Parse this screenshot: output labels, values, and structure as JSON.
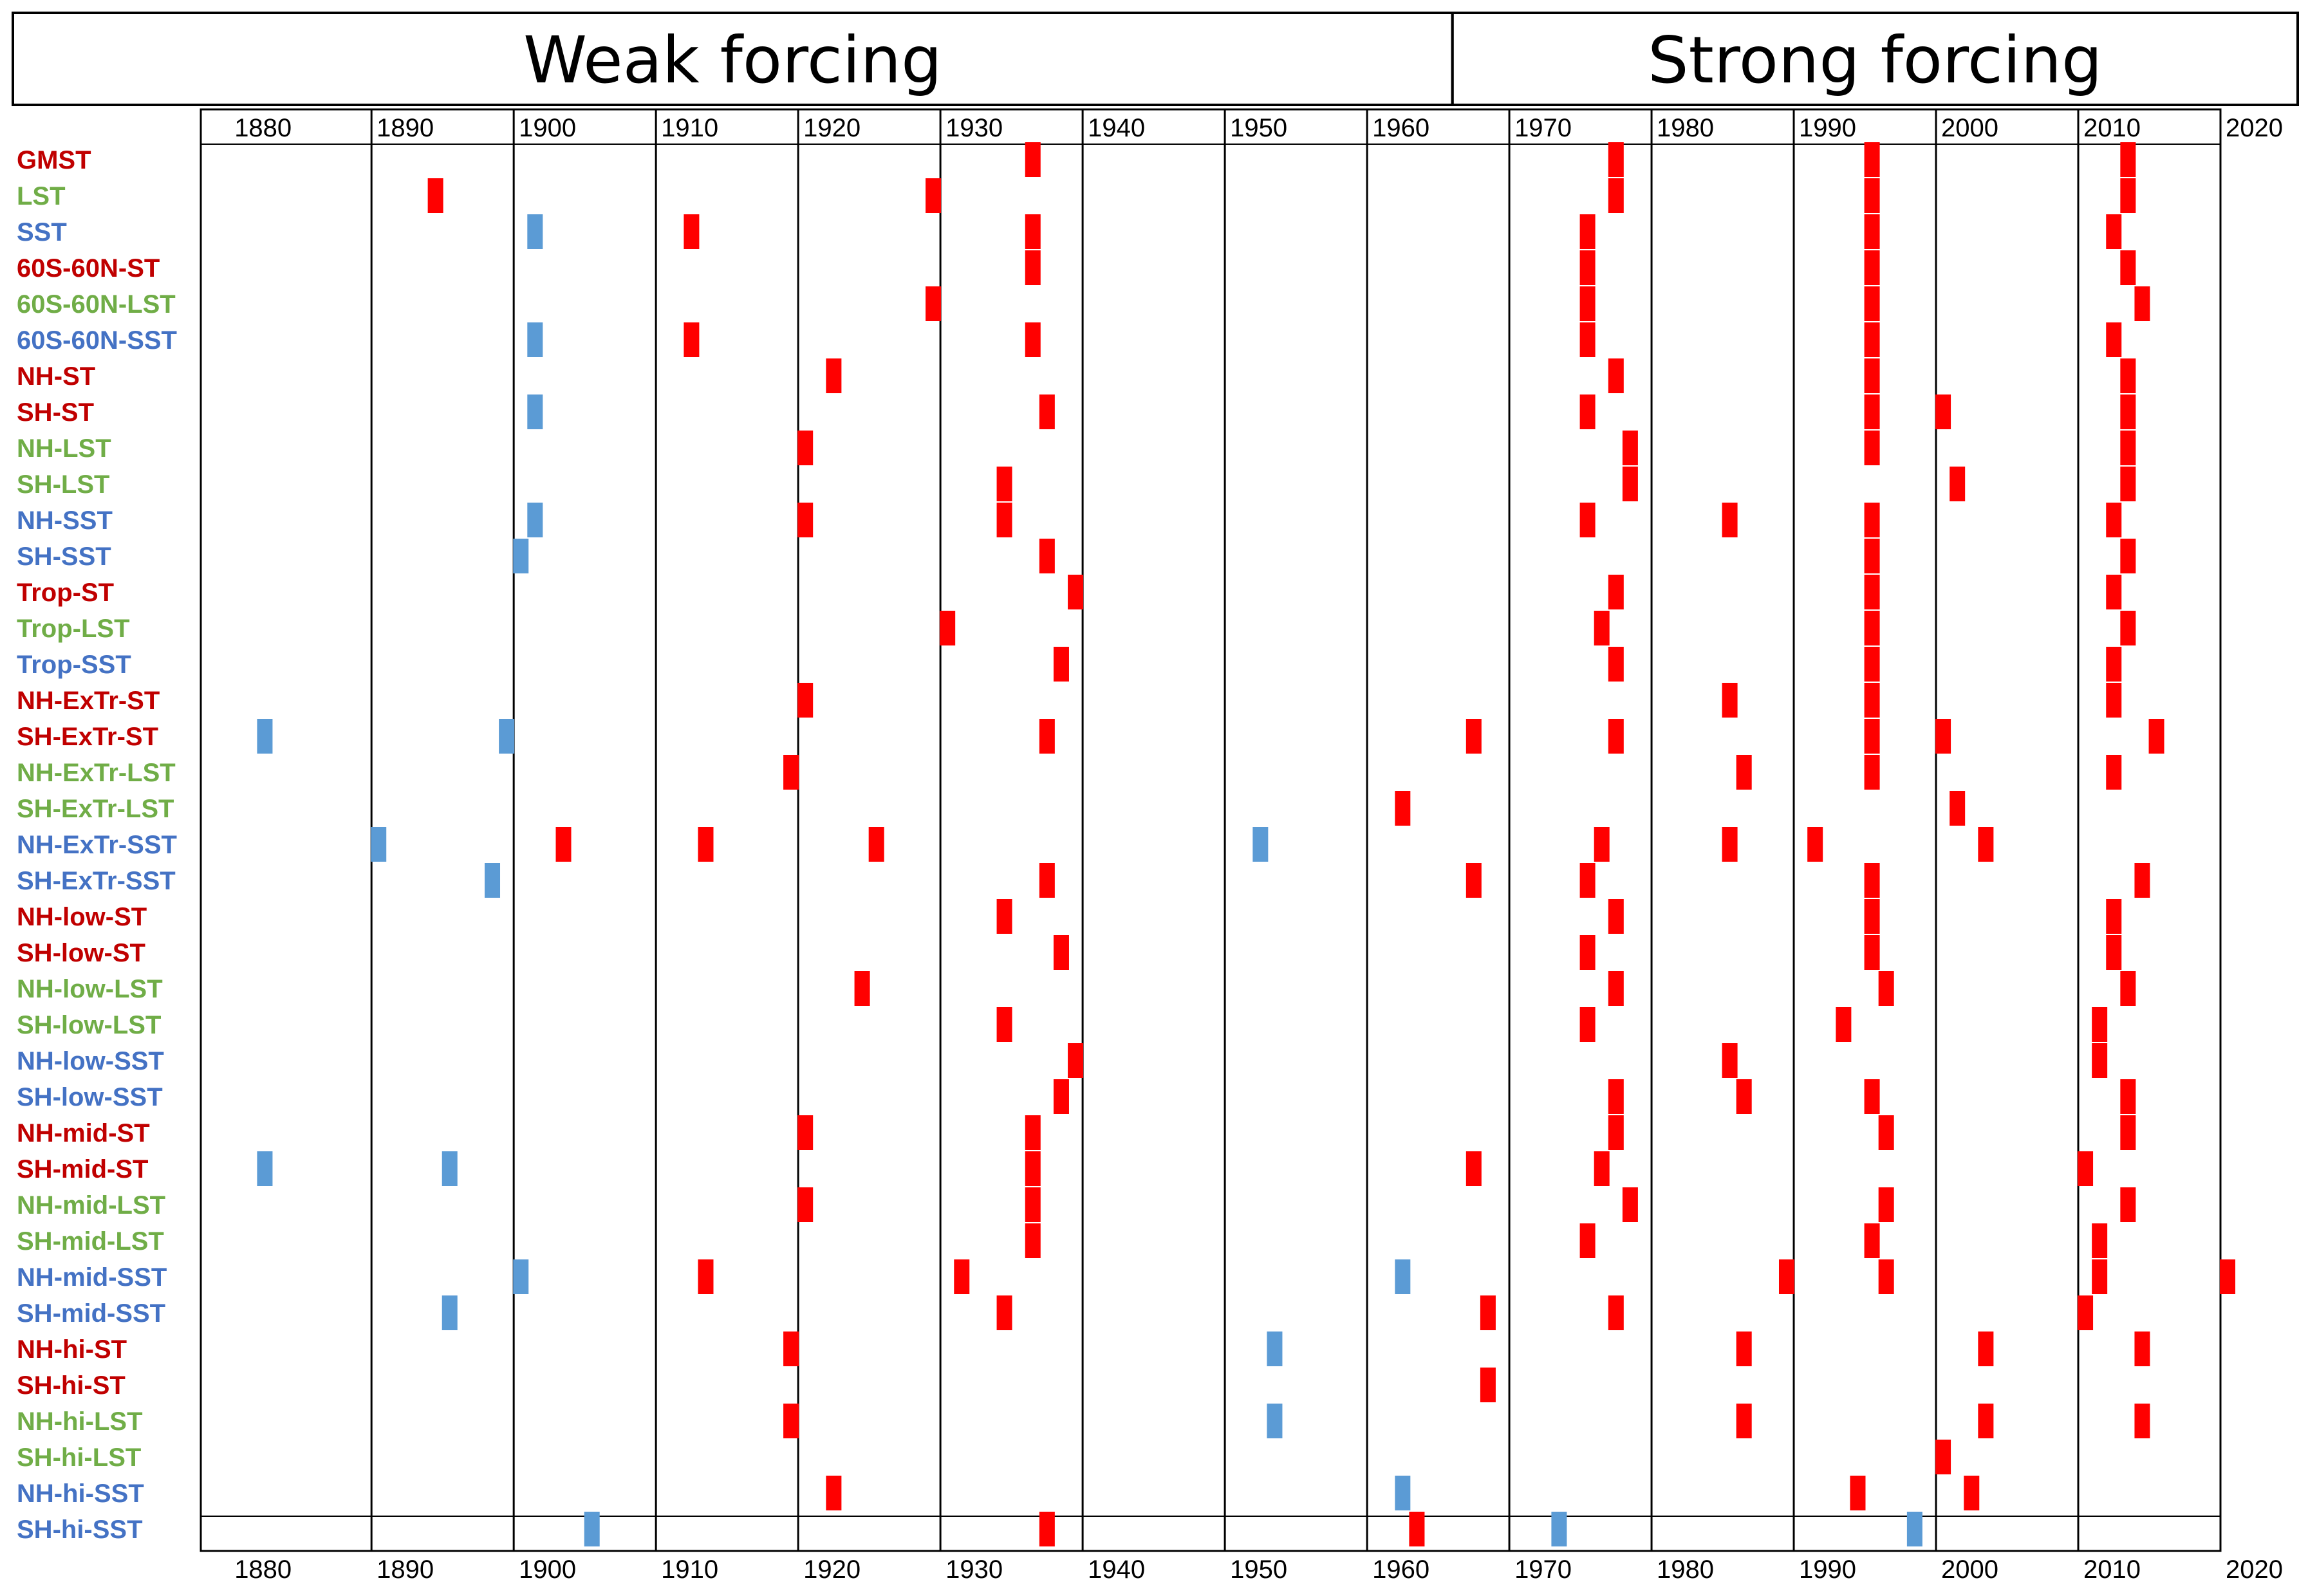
{
  "chart_data": {
    "type": "timeline-heatmap",
    "title": "",
    "header": [
      "Weak forcing",
      "Strong forcing"
    ],
    "header_split_year": 1966,
    "x_range": [
      1878,
      2020
    ],
    "x_ticks": [
      "1880",
      "1890",
      "1900",
      "1910",
      "1920",
      "1930",
      "1940",
      "1950",
      "1960",
      "1970",
      "1980",
      "1990",
      "2000",
      "2010",
      "2020"
    ],
    "colors": {
      "ST": "#c00000",
      "LST": "#70ad47",
      "SST": "#4472c4",
      "positive": "#ff0000",
      "negative": "#5b9bd5"
    },
    "rows": [
      {
        "label": "GMST",
        "group": "ST",
        "events": [
          {
            "year": 1936,
            "sign": "positive"
          },
          {
            "year": 1977,
            "sign": "positive"
          },
          {
            "year": 1995,
            "sign": "positive"
          },
          {
            "year": 2013,
            "sign": "positive"
          }
        ]
      },
      {
        "label": "LST",
        "group": "LST",
        "events": [
          {
            "year": 1894,
            "sign": "positive"
          },
          {
            "year": 1929,
            "sign": "positive"
          },
          {
            "year": 1977,
            "sign": "positive"
          },
          {
            "year": 1995,
            "sign": "positive"
          },
          {
            "year": 2013,
            "sign": "positive"
          }
        ]
      },
      {
        "label": "SST",
        "group": "SST",
        "events": [
          {
            "year": 1901,
            "sign": "negative"
          },
          {
            "year": 1912,
            "sign": "positive"
          },
          {
            "year": 1936,
            "sign": "positive"
          },
          {
            "year": 1975,
            "sign": "positive"
          },
          {
            "year": 1995,
            "sign": "positive"
          },
          {
            "year": 2012,
            "sign": "positive"
          }
        ]
      },
      {
        "label": "60S-60N-ST",
        "group": "ST",
        "events": [
          {
            "year": 1936,
            "sign": "positive"
          },
          {
            "year": 1975,
            "sign": "positive"
          },
          {
            "year": 1995,
            "sign": "positive"
          },
          {
            "year": 2013,
            "sign": "positive"
          }
        ]
      },
      {
        "label": "60S-60N-LST",
        "group": "LST",
        "events": [
          {
            "year": 1929,
            "sign": "positive"
          },
          {
            "year": 1975,
            "sign": "positive"
          },
          {
            "year": 1995,
            "sign": "positive"
          },
          {
            "year": 2014,
            "sign": "positive"
          }
        ]
      },
      {
        "label": "60S-60N-SST",
        "group": "SST",
        "events": [
          {
            "year": 1901,
            "sign": "negative"
          },
          {
            "year": 1912,
            "sign": "positive"
          },
          {
            "year": 1936,
            "sign": "positive"
          },
          {
            "year": 1975,
            "sign": "positive"
          },
          {
            "year": 1995,
            "sign": "positive"
          },
          {
            "year": 2012,
            "sign": "positive"
          }
        ]
      },
      {
        "label": "NH-ST",
        "group": "ST",
        "events": [
          {
            "year": 1922,
            "sign": "positive"
          },
          {
            "year": 1977,
            "sign": "positive"
          },
          {
            "year": 1995,
            "sign": "positive"
          },
          {
            "year": 2013,
            "sign": "positive"
          }
        ]
      },
      {
        "label": "SH-ST",
        "group": "ST",
        "events": [
          {
            "year": 1901,
            "sign": "negative"
          },
          {
            "year": 1937,
            "sign": "positive"
          },
          {
            "year": 1975,
            "sign": "positive"
          },
          {
            "year": 1995,
            "sign": "positive"
          },
          {
            "year": 2000,
            "sign": "positive"
          },
          {
            "year": 2013,
            "sign": "positive"
          }
        ]
      },
      {
        "label": "NH-LST",
        "group": "LST",
        "events": [
          {
            "year": 1920,
            "sign": "positive"
          },
          {
            "year": 1978,
            "sign": "positive"
          },
          {
            "year": 1995,
            "sign": "positive"
          },
          {
            "year": 2013,
            "sign": "positive"
          }
        ]
      },
      {
        "label": "SH-LST",
        "group": "LST",
        "events": [
          {
            "year": 1934,
            "sign": "positive"
          },
          {
            "year": 1978,
            "sign": "positive"
          },
          {
            "year": 2001,
            "sign": "positive"
          },
          {
            "year": 2013,
            "sign": "positive"
          }
        ]
      },
      {
        "label": "NH-SST",
        "group": "SST",
        "events": [
          {
            "year": 1901,
            "sign": "negative"
          },
          {
            "year": 1920,
            "sign": "positive"
          },
          {
            "year": 1934,
            "sign": "positive"
          },
          {
            "year": 1975,
            "sign": "positive"
          },
          {
            "year": 1985,
            "sign": "positive"
          },
          {
            "year": 1995,
            "sign": "positive"
          },
          {
            "year": 2012,
            "sign": "positive"
          }
        ]
      },
      {
        "label": "SH-SST",
        "group": "SST",
        "events": [
          {
            "year": 1900,
            "sign": "negative"
          },
          {
            "year": 1937,
            "sign": "positive"
          },
          {
            "year": 1995,
            "sign": "positive"
          },
          {
            "year": 2013,
            "sign": "positive"
          }
        ]
      },
      {
        "label": "Trop-ST",
        "group": "ST",
        "events": [
          {
            "year": 1939,
            "sign": "positive"
          },
          {
            "year": 1977,
            "sign": "positive"
          },
          {
            "year": 1995,
            "sign": "positive"
          },
          {
            "year": 2012,
            "sign": "positive"
          }
        ]
      },
      {
        "label": "Trop-LST",
        "group": "LST",
        "events": [
          {
            "year": 1930,
            "sign": "positive"
          },
          {
            "year": 1976,
            "sign": "positive"
          },
          {
            "year": 1995,
            "sign": "positive"
          },
          {
            "year": 2013,
            "sign": "positive"
          }
        ]
      },
      {
        "label": "Trop-SST",
        "group": "SST",
        "events": [
          {
            "year": 1938,
            "sign": "positive"
          },
          {
            "year": 1977,
            "sign": "positive"
          },
          {
            "year": 1995,
            "sign": "positive"
          },
          {
            "year": 2012,
            "sign": "positive"
          }
        ]
      },
      {
        "label": "NH-ExTr-ST",
        "group": "ST",
        "events": [
          {
            "year": 1920,
            "sign": "positive"
          },
          {
            "year": 1985,
            "sign": "positive"
          },
          {
            "year": 1995,
            "sign": "positive"
          },
          {
            "year": 2012,
            "sign": "positive"
          }
        ]
      },
      {
        "label": "SH-ExTr-ST",
        "group": "ST",
        "events": [
          {
            "year": 1882,
            "sign": "negative"
          },
          {
            "year": 1899,
            "sign": "negative"
          },
          {
            "year": 1937,
            "sign": "positive"
          },
          {
            "year": 1967,
            "sign": "positive"
          },
          {
            "year": 1977,
            "sign": "positive"
          },
          {
            "year": 1995,
            "sign": "positive"
          },
          {
            "year": 2000,
            "sign": "positive"
          },
          {
            "year": 2015,
            "sign": "positive"
          }
        ]
      },
      {
        "label": "NH-ExTr-LST",
        "group": "LST",
        "events": [
          {
            "year": 1919,
            "sign": "positive"
          },
          {
            "year": 1986,
            "sign": "positive"
          },
          {
            "year": 1995,
            "sign": "positive"
          },
          {
            "year": 2012,
            "sign": "positive"
          }
        ]
      },
      {
        "label": "SH-ExTr-LST",
        "group": "LST",
        "events": [
          {
            "year": 1962,
            "sign": "positive"
          },
          {
            "year": 2001,
            "sign": "positive"
          }
        ]
      },
      {
        "label": "NH-ExTr-SST",
        "group": "SST",
        "events": [
          {
            "year": 1890,
            "sign": "negative"
          },
          {
            "year": 1903,
            "sign": "positive"
          },
          {
            "year": 1913,
            "sign": "positive"
          },
          {
            "year": 1925,
            "sign": "positive"
          },
          {
            "year": 1952,
            "sign": "negative"
          },
          {
            "year": 1976,
            "sign": "positive"
          },
          {
            "year": 1985,
            "sign": "positive"
          },
          {
            "year": 1991,
            "sign": "positive"
          },
          {
            "year": 2003,
            "sign": "positive"
          }
        ]
      },
      {
        "label": "SH-ExTr-SST",
        "group": "SST",
        "events": [
          {
            "year": 1898,
            "sign": "negative"
          },
          {
            "year": 1937,
            "sign": "positive"
          },
          {
            "year": 1967,
            "sign": "positive"
          },
          {
            "year": 1975,
            "sign": "positive"
          },
          {
            "year": 1995,
            "sign": "positive"
          },
          {
            "year": 2014,
            "sign": "positive"
          }
        ]
      },
      {
        "label": "NH-low-ST",
        "group": "ST",
        "events": [
          {
            "year": 1934,
            "sign": "positive"
          },
          {
            "year": 1977,
            "sign": "positive"
          },
          {
            "year": 1995,
            "sign": "positive"
          },
          {
            "year": 2012,
            "sign": "positive"
          }
        ]
      },
      {
        "label": "SH-low-ST",
        "group": "ST",
        "events": [
          {
            "year": 1938,
            "sign": "positive"
          },
          {
            "year": 1975,
            "sign": "positive"
          },
          {
            "year": 1995,
            "sign": "positive"
          },
          {
            "year": 2012,
            "sign": "positive"
          }
        ]
      },
      {
        "label": "NH-low-LST",
        "group": "LST",
        "events": [
          {
            "year": 1924,
            "sign": "positive"
          },
          {
            "year": 1977,
            "sign": "positive"
          },
          {
            "year": 1996,
            "sign": "positive"
          },
          {
            "year": 2013,
            "sign": "positive"
          }
        ]
      },
      {
        "label": "SH-low-LST",
        "group": "LST",
        "events": [
          {
            "year": 1934,
            "sign": "positive"
          },
          {
            "year": 1975,
            "sign": "positive"
          },
          {
            "year": 1993,
            "sign": "positive"
          },
          {
            "year": 2011,
            "sign": "positive"
          }
        ]
      },
      {
        "label": "NH-low-SST",
        "group": "SST",
        "events": [
          {
            "year": 1939,
            "sign": "positive"
          },
          {
            "year": 1985,
            "sign": "positive"
          },
          {
            "year": 2011,
            "sign": "positive"
          }
        ]
      },
      {
        "label": "SH-low-SST",
        "group": "SST",
        "events": [
          {
            "year": 1938,
            "sign": "positive"
          },
          {
            "year": 1977,
            "sign": "positive"
          },
          {
            "year": 1986,
            "sign": "positive"
          },
          {
            "year": 1995,
            "sign": "positive"
          },
          {
            "year": 2013,
            "sign": "positive"
          }
        ]
      },
      {
        "label": "NH-mid-ST",
        "group": "ST",
        "events": [
          {
            "year": 1920,
            "sign": "positive"
          },
          {
            "year": 1936,
            "sign": "positive"
          },
          {
            "year": 1977,
            "sign": "positive"
          },
          {
            "year": 1996,
            "sign": "positive"
          },
          {
            "year": 2013,
            "sign": "positive"
          }
        ]
      },
      {
        "label": "SH-mid-ST",
        "group": "ST",
        "events": [
          {
            "year": 1882,
            "sign": "negative"
          },
          {
            "year": 1895,
            "sign": "negative"
          },
          {
            "year": 1936,
            "sign": "positive"
          },
          {
            "year": 1967,
            "sign": "positive"
          },
          {
            "year": 1976,
            "sign": "positive"
          },
          {
            "year": 2010,
            "sign": "positive"
          }
        ]
      },
      {
        "label": "NH-mid-LST",
        "group": "LST",
        "events": [
          {
            "year": 1920,
            "sign": "positive"
          },
          {
            "year": 1936,
            "sign": "positive"
          },
          {
            "year": 1978,
            "sign": "positive"
          },
          {
            "year": 1996,
            "sign": "positive"
          },
          {
            "year": 2013,
            "sign": "positive"
          }
        ]
      },
      {
        "label": "SH-mid-LST",
        "group": "LST",
        "events": [
          {
            "year": 1936,
            "sign": "positive"
          },
          {
            "year": 1975,
            "sign": "positive"
          },
          {
            "year": 1995,
            "sign": "positive"
          },
          {
            "year": 2011,
            "sign": "positive"
          }
        ]
      },
      {
        "label": "NH-mid-SST",
        "group": "SST",
        "events": [
          {
            "year": 1900,
            "sign": "negative"
          },
          {
            "year": 1913,
            "sign": "positive"
          },
          {
            "year": 1931,
            "sign": "positive"
          },
          {
            "year": 1962,
            "sign": "negative"
          },
          {
            "year": 1989,
            "sign": "positive"
          },
          {
            "year": 1996,
            "sign": "positive"
          },
          {
            "year": 2011,
            "sign": "positive"
          },
          {
            "year": 2020,
            "sign": "positive"
          }
        ]
      },
      {
        "label": "SH-mid-SST",
        "group": "SST",
        "events": [
          {
            "year": 1895,
            "sign": "negative"
          },
          {
            "year": 1934,
            "sign": "positive"
          },
          {
            "year": 1968,
            "sign": "positive"
          },
          {
            "year": 1977,
            "sign": "positive"
          },
          {
            "year": 2010,
            "sign": "positive"
          }
        ]
      },
      {
        "label": "NH-hi-ST",
        "group": "ST",
        "events": [
          {
            "year": 1919,
            "sign": "positive"
          },
          {
            "year": 1953,
            "sign": "negative"
          },
          {
            "year": 1986,
            "sign": "positive"
          },
          {
            "year": 2003,
            "sign": "positive"
          },
          {
            "year": 2014,
            "sign": "positive"
          }
        ]
      },
      {
        "label": "SH-hi-ST",
        "group": "ST",
        "events": [
          {
            "year": 1968,
            "sign": "positive"
          }
        ]
      },
      {
        "label": "NH-hi-LST",
        "group": "LST",
        "events": [
          {
            "year": 1919,
            "sign": "positive"
          },
          {
            "year": 1953,
            "sign": "negative"
          },
          {
            "year": 1986,
            "sign": "positive"
          },
          {
            "year": 2003,
            "sign": "positive"
          },
          {
            "year": 2014,
            "sign": "positive"
          }
        ]
      },
      {
        "label": "SH-hi-LST",
        "group": "LST",
        "events": [
          {
            "year": 2000,
            "sign": "positive"
          }
        ]
      },
      {
        "label": "NH-hi-SST",
        "group": "SST",
        "events": [
          {
            "year": 1922,
            "sign": "positive"
          },
          {
            "year": 1962,
            "sign": "negative"
          },
          {
            "year": 1994,
            "sign": "positive"
          },
          {
            "year": 2002,
            "sign": "positive"
          }
        ]
      },
      {
        "label": "SH-hi-SST",
        "group": "SST",
        "events": [
          {
            "year": 1905,
            "sign": "negative"
          },
          {
            "year": 1937,
            "sign": "positive"
          },
          {
            "year": 1963,
            "sign": "positive"
          },
          {
            "year": 1973,
            "sign": "negative"
          },
          {
            "year": 1998,
            "sign": "negative"
          }
        ]
      }
    ]
  }
}
